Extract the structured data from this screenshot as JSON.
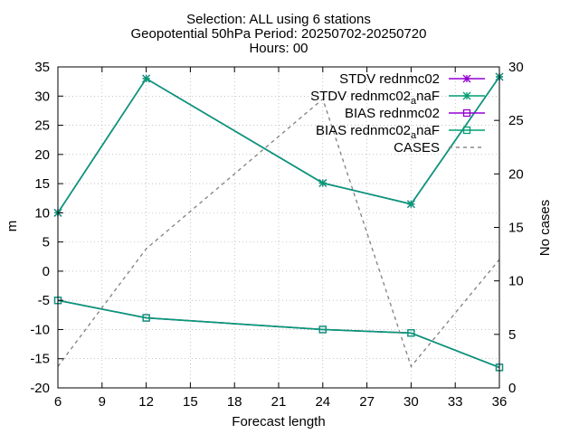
{
  "chart_data": {
    "type": "line",
    "title": {
      "line1": "Selection: ALL using     6 stations",
      "line2": "Geopotential 50hPa   Period: 20250702-20250720",
      "line3": "Hours: 00"
    },
    "xlabel": "Forecast length",
    "ylabel": "m",
    "y2label": "No cases",
    "xlim": [
      6,
      36
    ],
    "ylim": [
      -20,
      35
    ],
    "y2lim": [
      0,
      30
    ],
    "xticks": [
      6,
      9,
      12,
      15,
      18,
      21,
      24,
      27,
      30,
      33,
      36
    ],
    "yticks": [
      -20,
      -15,
      -10,
      -5,
      0,
      5,
      10,
      15,
      20,
      25,
      30,
      35
    ],
    "y2ticks": [
      0,
      5,
      10,
      15,
      20,
      25,
      30
    ],
    "grid": true,
    "legend_position": "top-right",
    "x": [
      6,
      12,
      24,
      30,
      36
    ],
    "series": [
      {
        "name": "STDV rednmc02",
        "legend_main": "STDV rednmc02",
        "legend_sub": "",
        "axis": "y1",
        "color": "#9400d3",
        "style": "solid",
        "marker": "star",
        "values": [
          10,
          33,
          15.1,
          11.5,
          33.3
        ]
      },
      {
        "name": "STDV rednmc02_anaF",
        "legend_main": "STDV rednmc02",
        "legend_sub": "a",
        "legend_tail": "naF",
        "axis": "y1",
        "color": "#009e73",
        "style": "solid",
        "marker": "star",
        "values": [
          10,
          33,
          15.1,
          11.5,
          33.3
        ]
      },
      {
        "name": "BIAS rednmc02",
        "legend_main": "BIAS rednmc02",
        "legend_sub": "",
        "axis": "y1",
        "color": "#9400d3",
        "style": "solid",
        "marker": "square",
        "values": [
          -5,
          -8,
          -10,
          -10.6,
          -16.5
        ]
      },
      {
        "name": "BIAS rednmc02_anaF",
        "legend_main": "BIAS rednmc02",
        "legend_sub": "a",
        "legend_tail": "naF",
        "axis": "y1",
        "color": "#009e73",
        "style": "solid",
        "marker": "square",
        "values": [
          -5,
          -8,
          -10,
          -10.6,
          -16.5
        ]
      },
      {
        "name": "CASES",
        "legend_main": "CASES",
        "legend_sub": "",
        "axis": "y2",
        "color": "#888888",
        "style": "dashed",
        "marker": "none",
        "values": [
          2,
          13,
          27,
          2,
          12
        ]
      }
    ]
  }
}
